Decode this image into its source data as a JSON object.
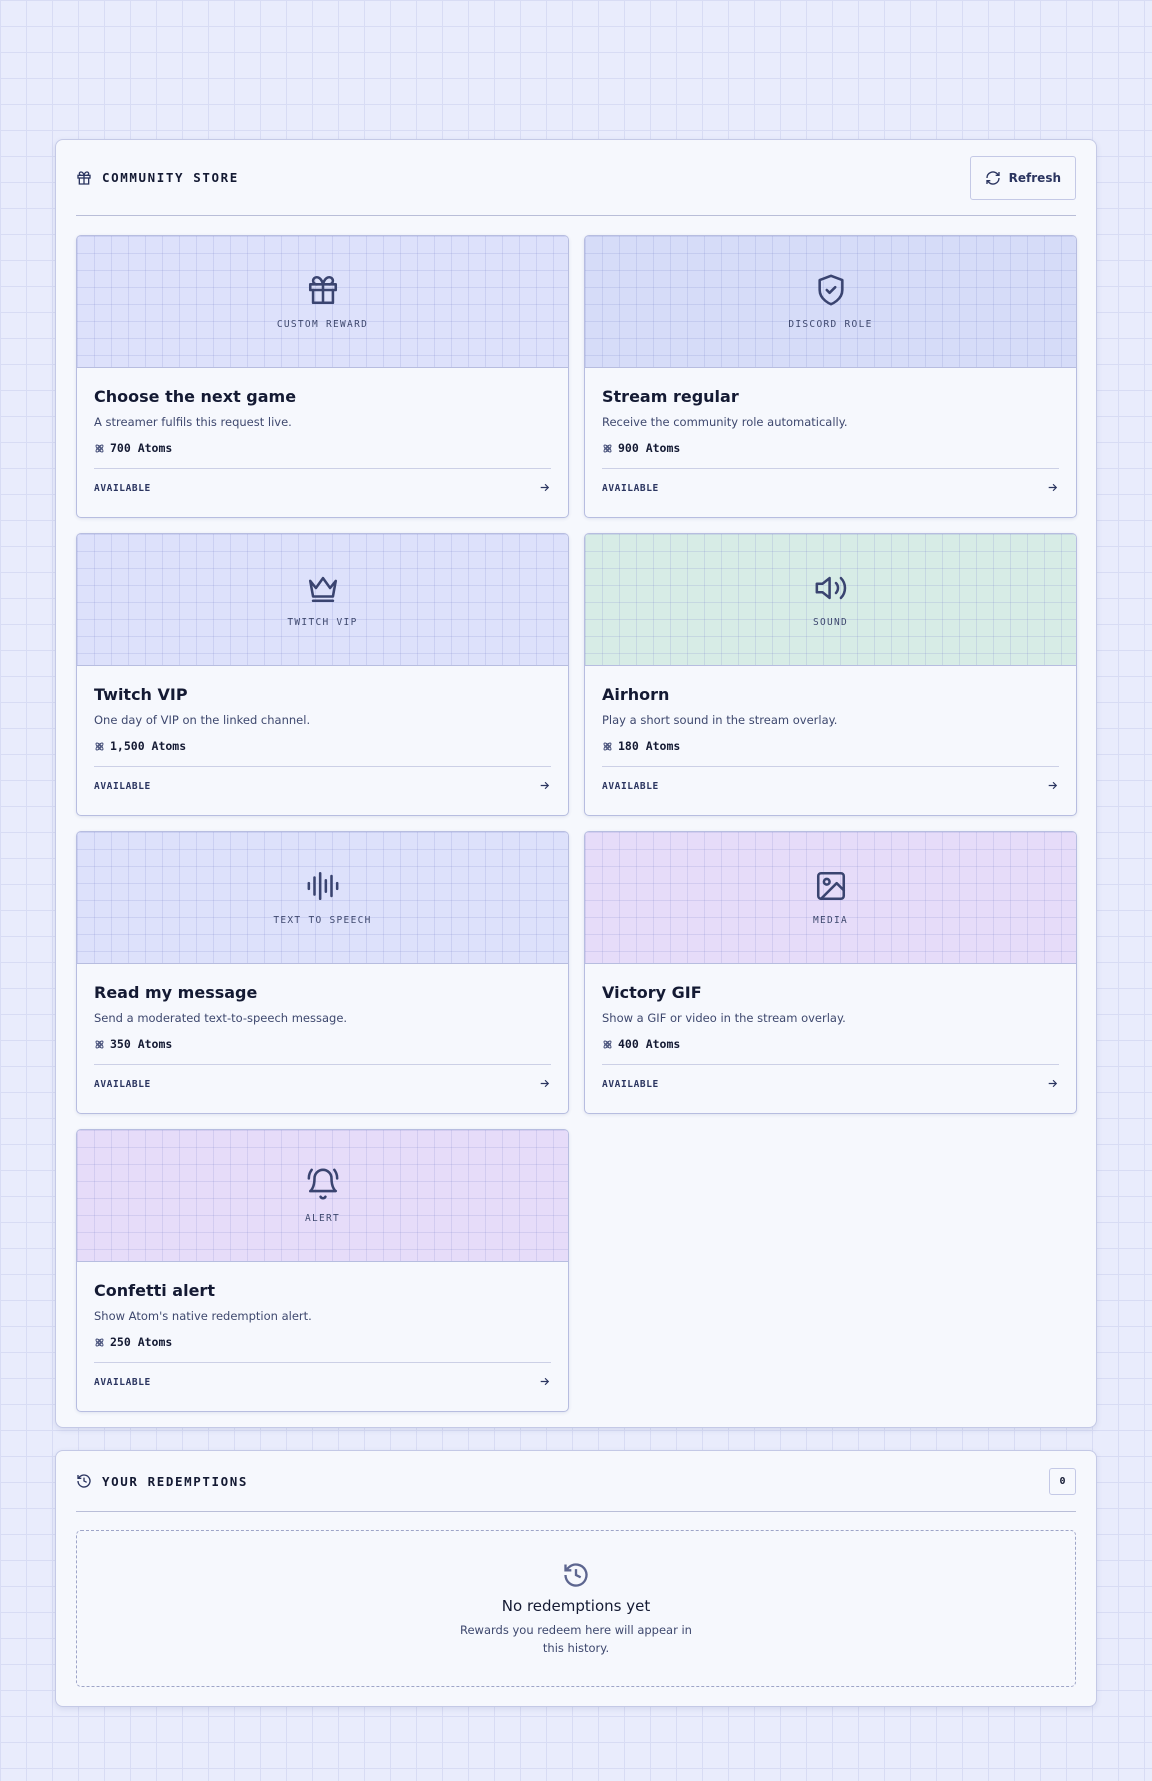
{
  "store": {
    "title": "COMMUNITY STORE",
    "refresh": "Refresh",
    "items": [
      {
        "category": "CUSTOM REWARD",
        "title": "Choose the next game",
        "description": "A streamer fulfils this request live.",
        "price": "700 Atoms",
        "status": "AVAILABLE"
      },
      {
        "category": "DISCORD ROLE",
        "title": "Stream regular",
        "description": "Receive the community role automatically.",
        "price": "900 Atoms",
        "status": "AVAILABLE"
      },
      {
        "category": "TWITCH VIP",
        "title": "Twitch VIP",
        "description": "One day of VIP on the linked channel.",
        "price": "1,500 Atoms",
        "status": "AVAILABLE"
      },
      {
        "category": "SOUND",
        "title": "Airhorn",
        "description": "Play a short sound in the stream overlay.",
        "price": "180 Atoms",
        "status": "AVAILABLE"
      },
      {
        "category": "TEXT TO SPEECH",
        "title": "Read my message",
        "description": "Send a moderated text-to-speech message.",
        "price": "350 Atoms",
        "status": "AVAILABLE"
      },
      {
        "category": "MEDIA",
        "title": "Victory GIF",
        "description": "Show a GIF or video in the stream overlay.",
        "price": "400 Atoms",
        "status": "AVAILABLE"
      },
      {
        "category": "ALERT",
        "title": "Confetti alert",
        "description": "Show Atom's native redemption alert.",
        "price": "250 Atoms",
        "status": "AVAILABLE"
      }
    ]
  },
  "redemptions": {
    "title": "YOUR REDEMPTIONS",
    "count": "0",
    "empty": {
      "title": "No redemptions yet",
      "text": "Rewards you redeem here will appear in this history."
    }
  }
}
